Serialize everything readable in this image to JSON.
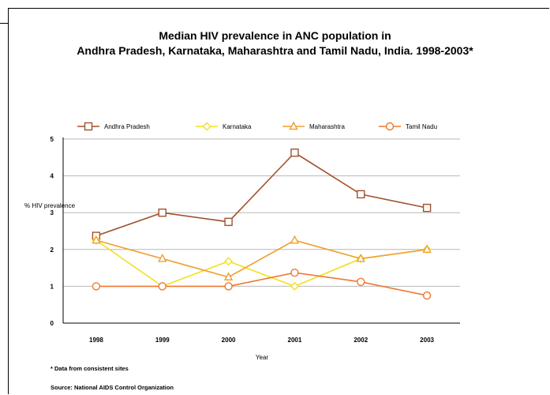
{
  "chart_data": {
    "type": "line",
    "title": "Median HIV prevalence in ANC population in",
    "subtitle": "Andhra Pradesh, Karnataka, Maharashtra and Tamil Nadu, India.  1998-2003*",
    "xlabel": "Year",
    "ylabel": "% HIV prevalence",
    "categories": [
      "1998",
      "1999",
      "2000",
      "2001",
      "2002",
      "2003"
    ],
    "yticks": [
      "0",
      "1",
      "2",
      "3",
      "4",
      "5"
    ],
    "ylim": [
      0,
      5
    ],
    "grid": true,
    "legend_position": "top",
    "series": [
      {
        "name": "Andhra Pradesh",
        "values": [
          2.37,
          3.0,
          2.75,
          4.63,
          3.5,
          3.13
        ],
        "color": "#a0522d",
        "marker": "square"
      },
      {
        "name": "Karnataka",
        "values": [
          2.25,
          1.0,
          1.68,
          1.0,
          1.75,
          2.0
        ],
        "color": "#f0e020",
        "marker": "diamond"
      },
      {
        "name": "Maharashtra",
        "values": [
          2.25,
          1.75,
          1.25,
          2.25,
          1.75,
          2.0
        ],
        "color": "#f0a030",
        "marker": "triangle"
      },
      {
        "name": "Tamil Nadu",
        "values": [
          1.0,
          1.0,
          1.0,
          1.37,
          1.12,
          0.75
        ],
        "color": "#f07830",
        "marker": "circle"
      }
    ]
  },
  "footnotes": {
    "note": "* Data from consistent sites",
    "source": "Source: National AIDS Control Organization"
  }
}
